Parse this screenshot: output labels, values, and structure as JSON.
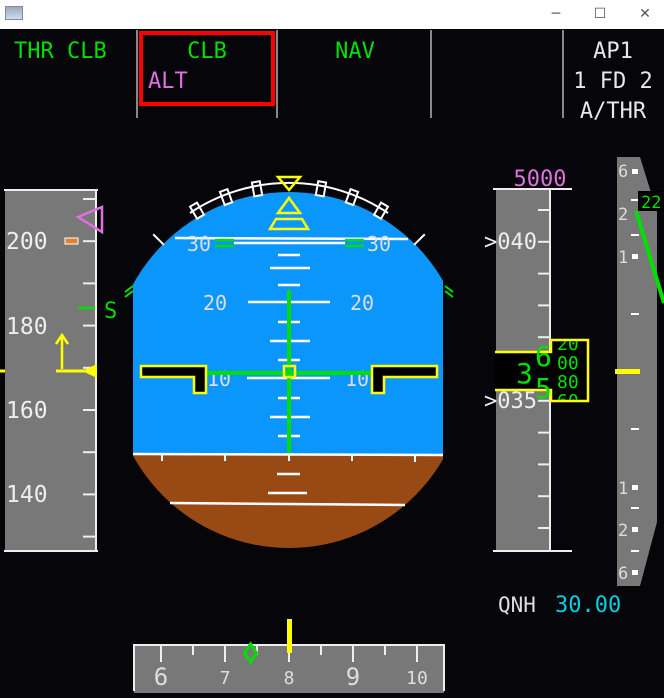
{
  "window": {
    "minimize": "─",
    "maximize": "☐",
    "close": "✕",
    "icon": "app-icon"
  },
  "fma": {
    "col1": {
      "line1": "THR CLB"
    },
    "col2": {
      "line1": "CLB",
      "line2": "ALT",
      "highlighted": true
    },
    "col3": {
      "line1": "NAV"
    },
    "col4": {},
    "col5": {
      "line1": "AP1",
      "line2": "1 FD 2",
      "line3": "A/THR"
    }
  },
  "speed_tape": {
    "labels": [
      "200",
      "180",
      "160",
      "140"
    ],
    "current_speed": 170,
    "speed_trend_target": 178,
    "s_label": "S"
  },
  "attitude": {
    "pitch_labels": {
      "p30": "30",
      "p20": "20",
      "p10": "10"
    },
    "pitch_deg": 0,
    "roll_deg": 0
  },
  "altitude_tape": {
    "selected_altitude": "5000",
    "labels": [
      ">040",
      ">035"
    ],
    "readout": {
      "hundreds": "3",
      "tens_upper": "6",
      "tens_lower": "5",
      "drum": [
        "20",
        "00",
        "80",
        "60"
      ]
    },
    "qnh_label": "QNH",
    "qnh_value": "30.00"
  },
  "vs_scale": {
    "labels": [
      "6",
      "2",
      "1",
      "1",
      "2",
      "6"
    ],
    "vs_readout": "22"
  },
  "heading": {
    "labels": [
      "6",
      "7",
      "8",
      "9",
      "10"
    ],
    "current_heading": 80,
    "track": 74
  },
  "colors": {
    "green": "#00e000",
    "magenta": "#e070e0",
    "cyan": "#00d0e0",
    "yellow": "#ffff00",
    "sky": "#0a96fa",
    "ground": "#994a14",
    "tape": "#787878",
    "red": "#ff0000",
    "background": "#05050a"
  }
}
